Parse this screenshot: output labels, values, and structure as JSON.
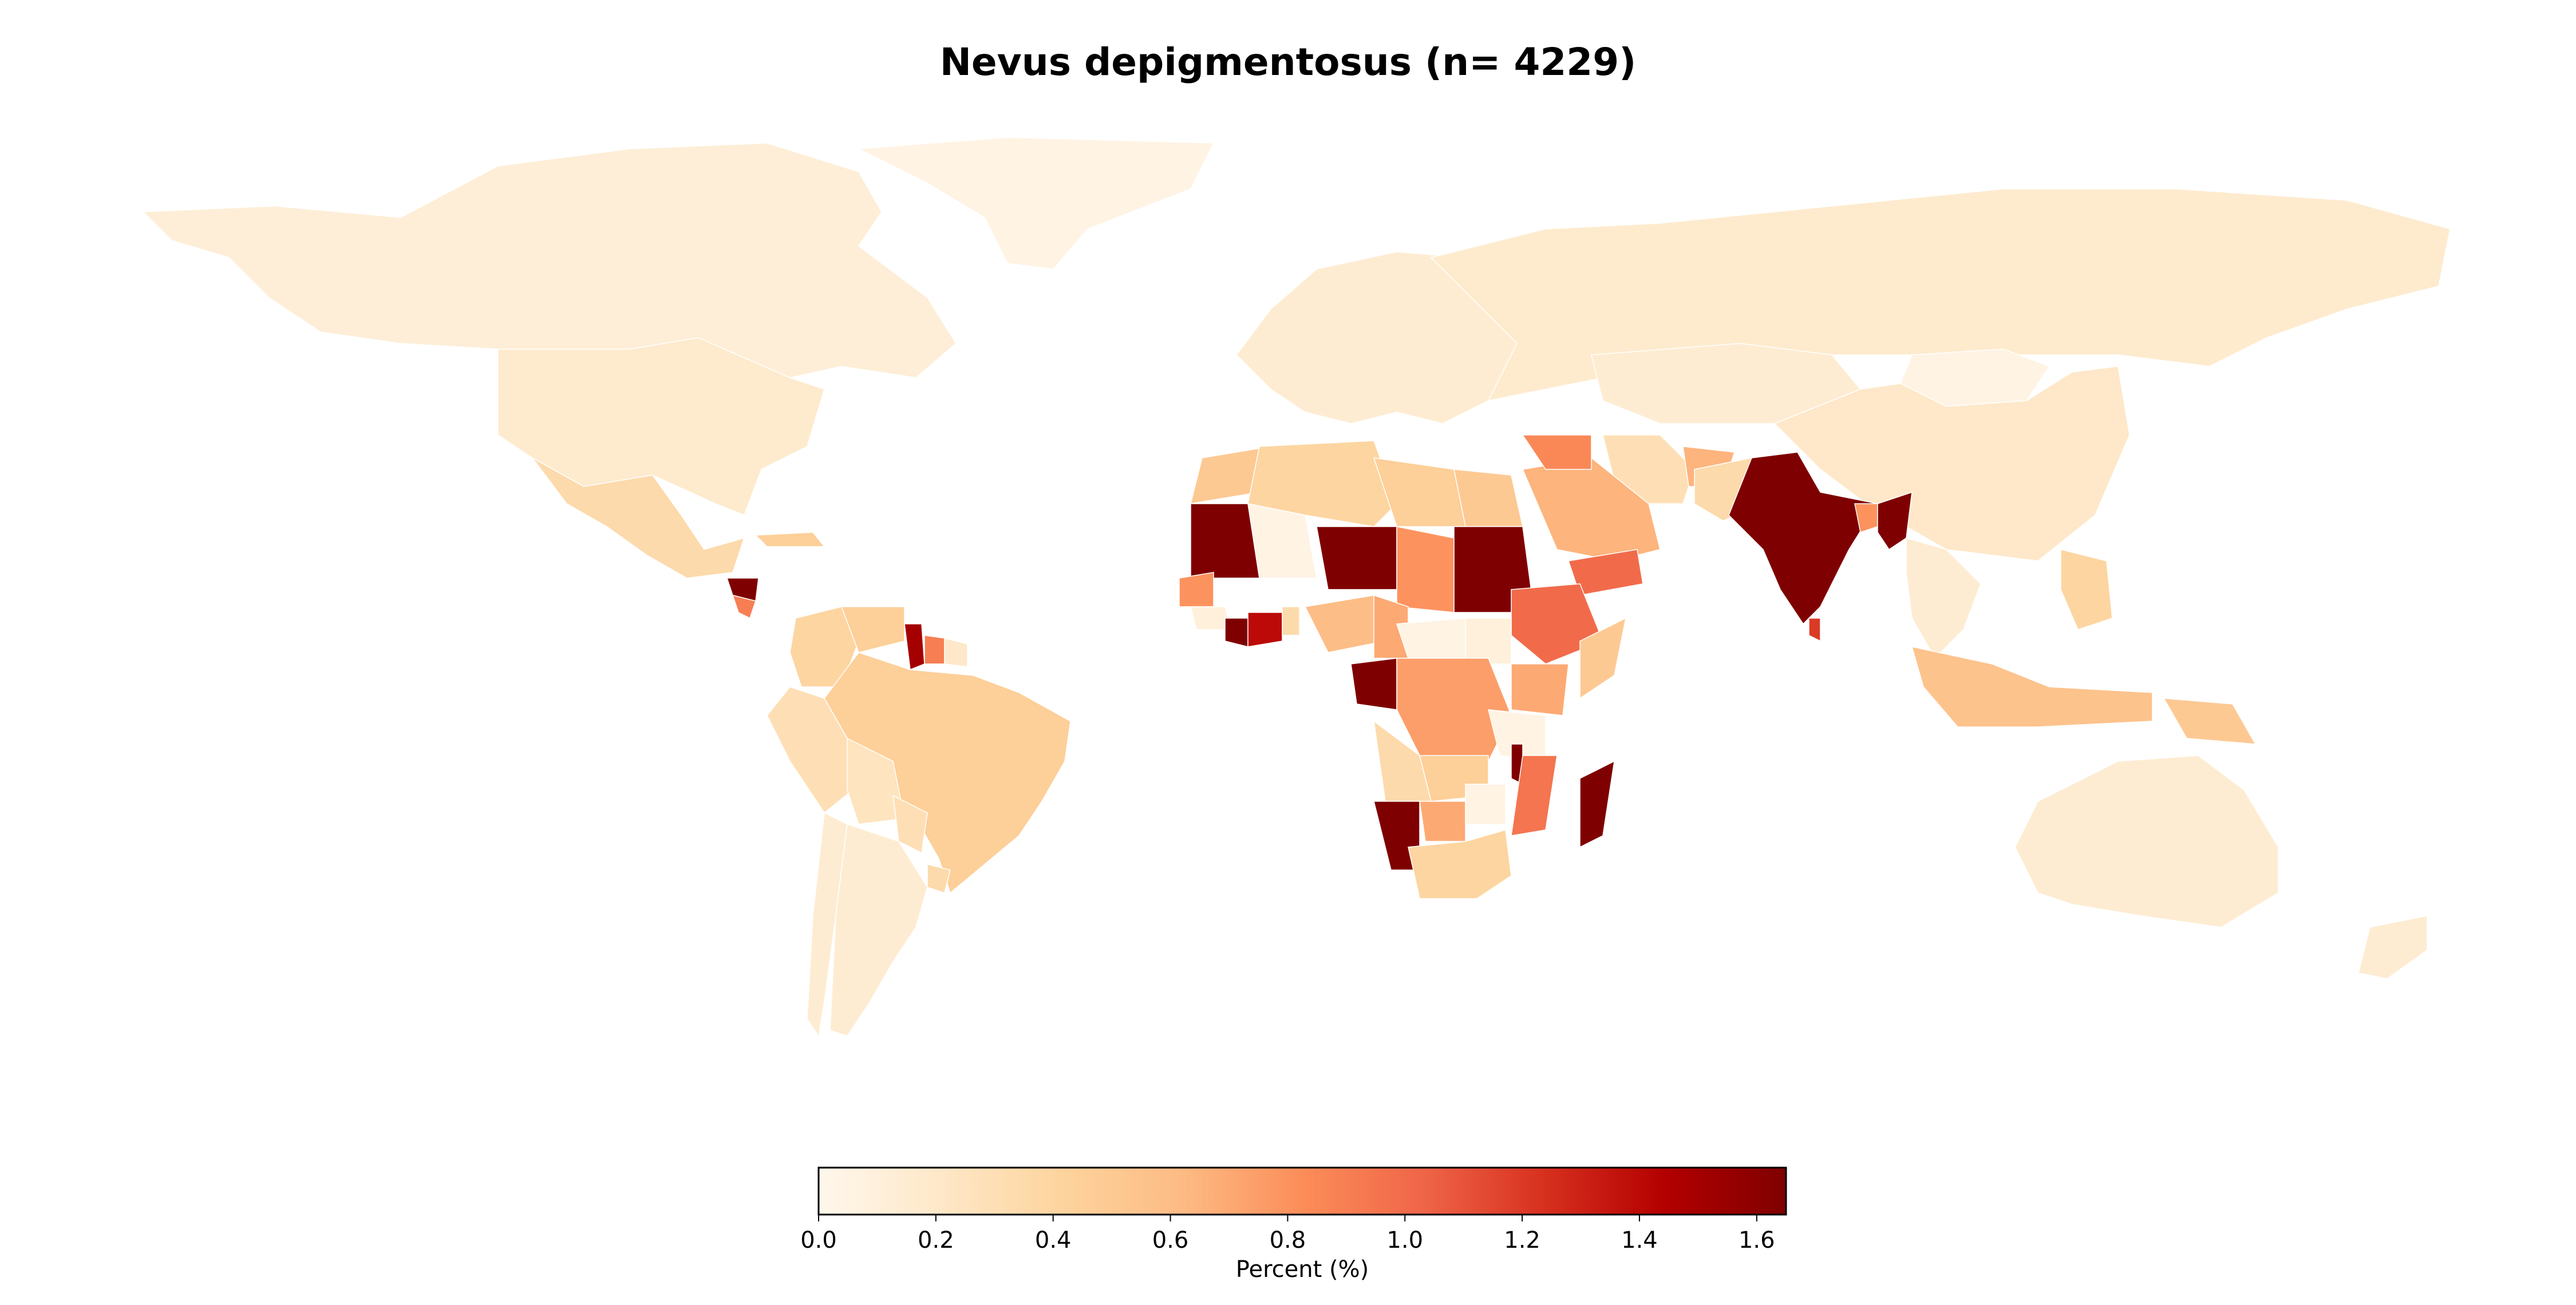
{
  "title": "Nevus depigmentosus (n= 4229)",
  "chart_data": {
    "type": "choropleth",
    "title": "Nevus depigmentosus (n= 4229)",
    "colormap": "OrRd",
    "colorbar": {
      "label": "Percent (%)",
      "range": [
        0.0,
        1.65
      ],
      "ticks": [
        0.0,
        0.2,
        0.4,
        0.6,
        0.8,
        1.0,
        1.2,
        1.4,
        1.6
      ],
      "tick_labels": [
        "0.0",
        "0.2",
        "0.4",
        "0.6",
        "0.8",
        "1.0",
        "1.2",
        "1.4",
        "1.6"
      ],
      "placement": "bottom-center"
    },
    "regions": [
      {
        "name": "Canada",
        "value": 0.12
      },
      {
        "name": "Greenland",
        "value": 0.05
      },
      {
        "name": "United States",
        "value": 0.18
      },
      {
        "name": "Mexico",
        "value": 0.35
      },
      {
        "name": "Cuba",
        "value": 0.45
      },
      {
        "name": "Honduras",
        "value": 1.65
      },
      {
        "name": "Nicaragua",
        "value": 0.9
      },
      {
        "name": "Colombia",
        "value": 0.4
      },
      {
        "name": "Venezuela",
        "value": 0.45
      },
      {
        "name": "Guyana",
        "value": 1.5
      },
      {
        "name": "Suriname",
        "value": 0.9
      },
      {
        "name": "French Guiana",
        "value": 0.2
      },
      {
        "name": "Brazil",
        "value": 0.45
      },
      {
        "name": "Peru",
        "value": 0.3
      },
      {
        "name": "Bolivia",
        "value": 0.25
      },
      {
        "name": "Chile",
        "value": 0.15
      },
      {
        "name": "Argentina",
        "value": 0.15
      },
      {
        "name": "Paraguay",
        "value": 0.3
      },
      {
        "name": "Uruguay",
        "value": 0.35
      },
      {
        "name": "Europe",
        "value": 0.15
      },
      {
        "name": "Russia",
        "value": 0.17
      },
      {
        "name": "Mongolia",
        "value": 0.05
      },
      {
        "name": "China",
        "value": 0.2
      },
      {
        "name": "Kazakhstan",
        "value": 0.15
      },
      {
        "name": "Iran",
        "value": 0.3
      },
      {
        "name": "Afghanistan",
        "value": 0.65
      },
      {
        "name": "Pakistan",
        "value": 0.35
      },
      {
        "name": "India",
        "value": 1.65
      },
      {
        "name": "Sri Lanka",
        "value": 1.2
      },
      {
        "name": "Bangladesh",
        "value": 0.8
      },
      {
        "name": "Myanmar",
        "value": 1.65
      },
      {
        "name": "Southeast Asia",
        "value": 0.15
      },
      {
        "name": "Philippines",
        "value": 0.4
      },
      {
        "name": "Indonesia",
        "value": 0.55
      },
      {
        "name": "Papua New Guinea",
        "value": 0.5
      },
      {
        "name": "Australia",
        "value": 0.15
      },
      {
        "name": "New Zealand",
        "value": 0.15
      },
      {
        "name": "Saudi Arabia",
        "value": 0.65
      },
      {
        "name": "Iraq",
        "value": 0.85
      },
      {
        "name": "Yemen",
        "value": 1.0
      },
      {
        "name": "Morocco",
        "value": 0.5
      },
      {
        "name": "Algeria",
        "value": 0.4
      },
      {
        "name": "Libya",
        "value": 0.45
      },
      {
        "name": "Egypt",
        "value": 0.5
      },
      {
        "name": "Mauritania",
        "value": 1.65
      },
      {
        "name": "Mali",
        "value": 0.05
      },
      {
        "name": "Niger",
        "value": 1.65
      },
      {
        "name": "Chad",
        "value": 0.8
      },
      {
        "name": "Sudan",
        "value": 1.65
      },
      {
        "name": "Ethiopia",
        "value": 1.0
      },
      {
        "name": "Somalia",
        "value": 0.5
      },
      {
        "name": "Kenya",
        "value": 0.7
      },
      {
        "name": "Senegal",
        "value": 0.8
      },
      {
        "name": "Guinea",
        "value": 0.1
      },
      {
        "name": "Liberia",
        "value": 1.65
      },
      {
        "name": "Cote d'Ivoire",
        "value": 1.4
      },
      {
        "name": "Ghana",
        "value": 0.35
      },
      {
        "name": "Nigeria",
        "value": 0.6
      },
      {
        "name": "Cameroon",
        "value": 0.7
      },
      {
        "name": "Central African Republic",
        "value": 0.05
      },
      {
        "name": "South Sudan",
        "value": 0.1
      },
      {
        "name": "Gabon",
        "value": 1.65
      },
      {
        "name": "DR Congo",
        "value": 0.75
      },
      {
        "name": "Tanzania",
        "value": 0.05
      },
      {
        "name": "Angola",
        "value": 0.35
      },
      {
        "name": "Zambia",
        "value": 0.45
      },
      {
        "name": "Malawi",
        "value": 1.65
      },
      {
        "name": "Mozambique",
        "value": 0.95
      },
      {
        "name": "Namibia",
        "value": 1.65
      },
      {
        "name": "Botswana",
        "value": 0.7
      },
      {
        "name": "Zimbabwe",
        "value": 0.05
      },
      {
        "name": "South Africa",
        "value": 0.4
      },
      {
        "name": "Madagascar",
        "value": 1.65
      }
    ]
  }
}
